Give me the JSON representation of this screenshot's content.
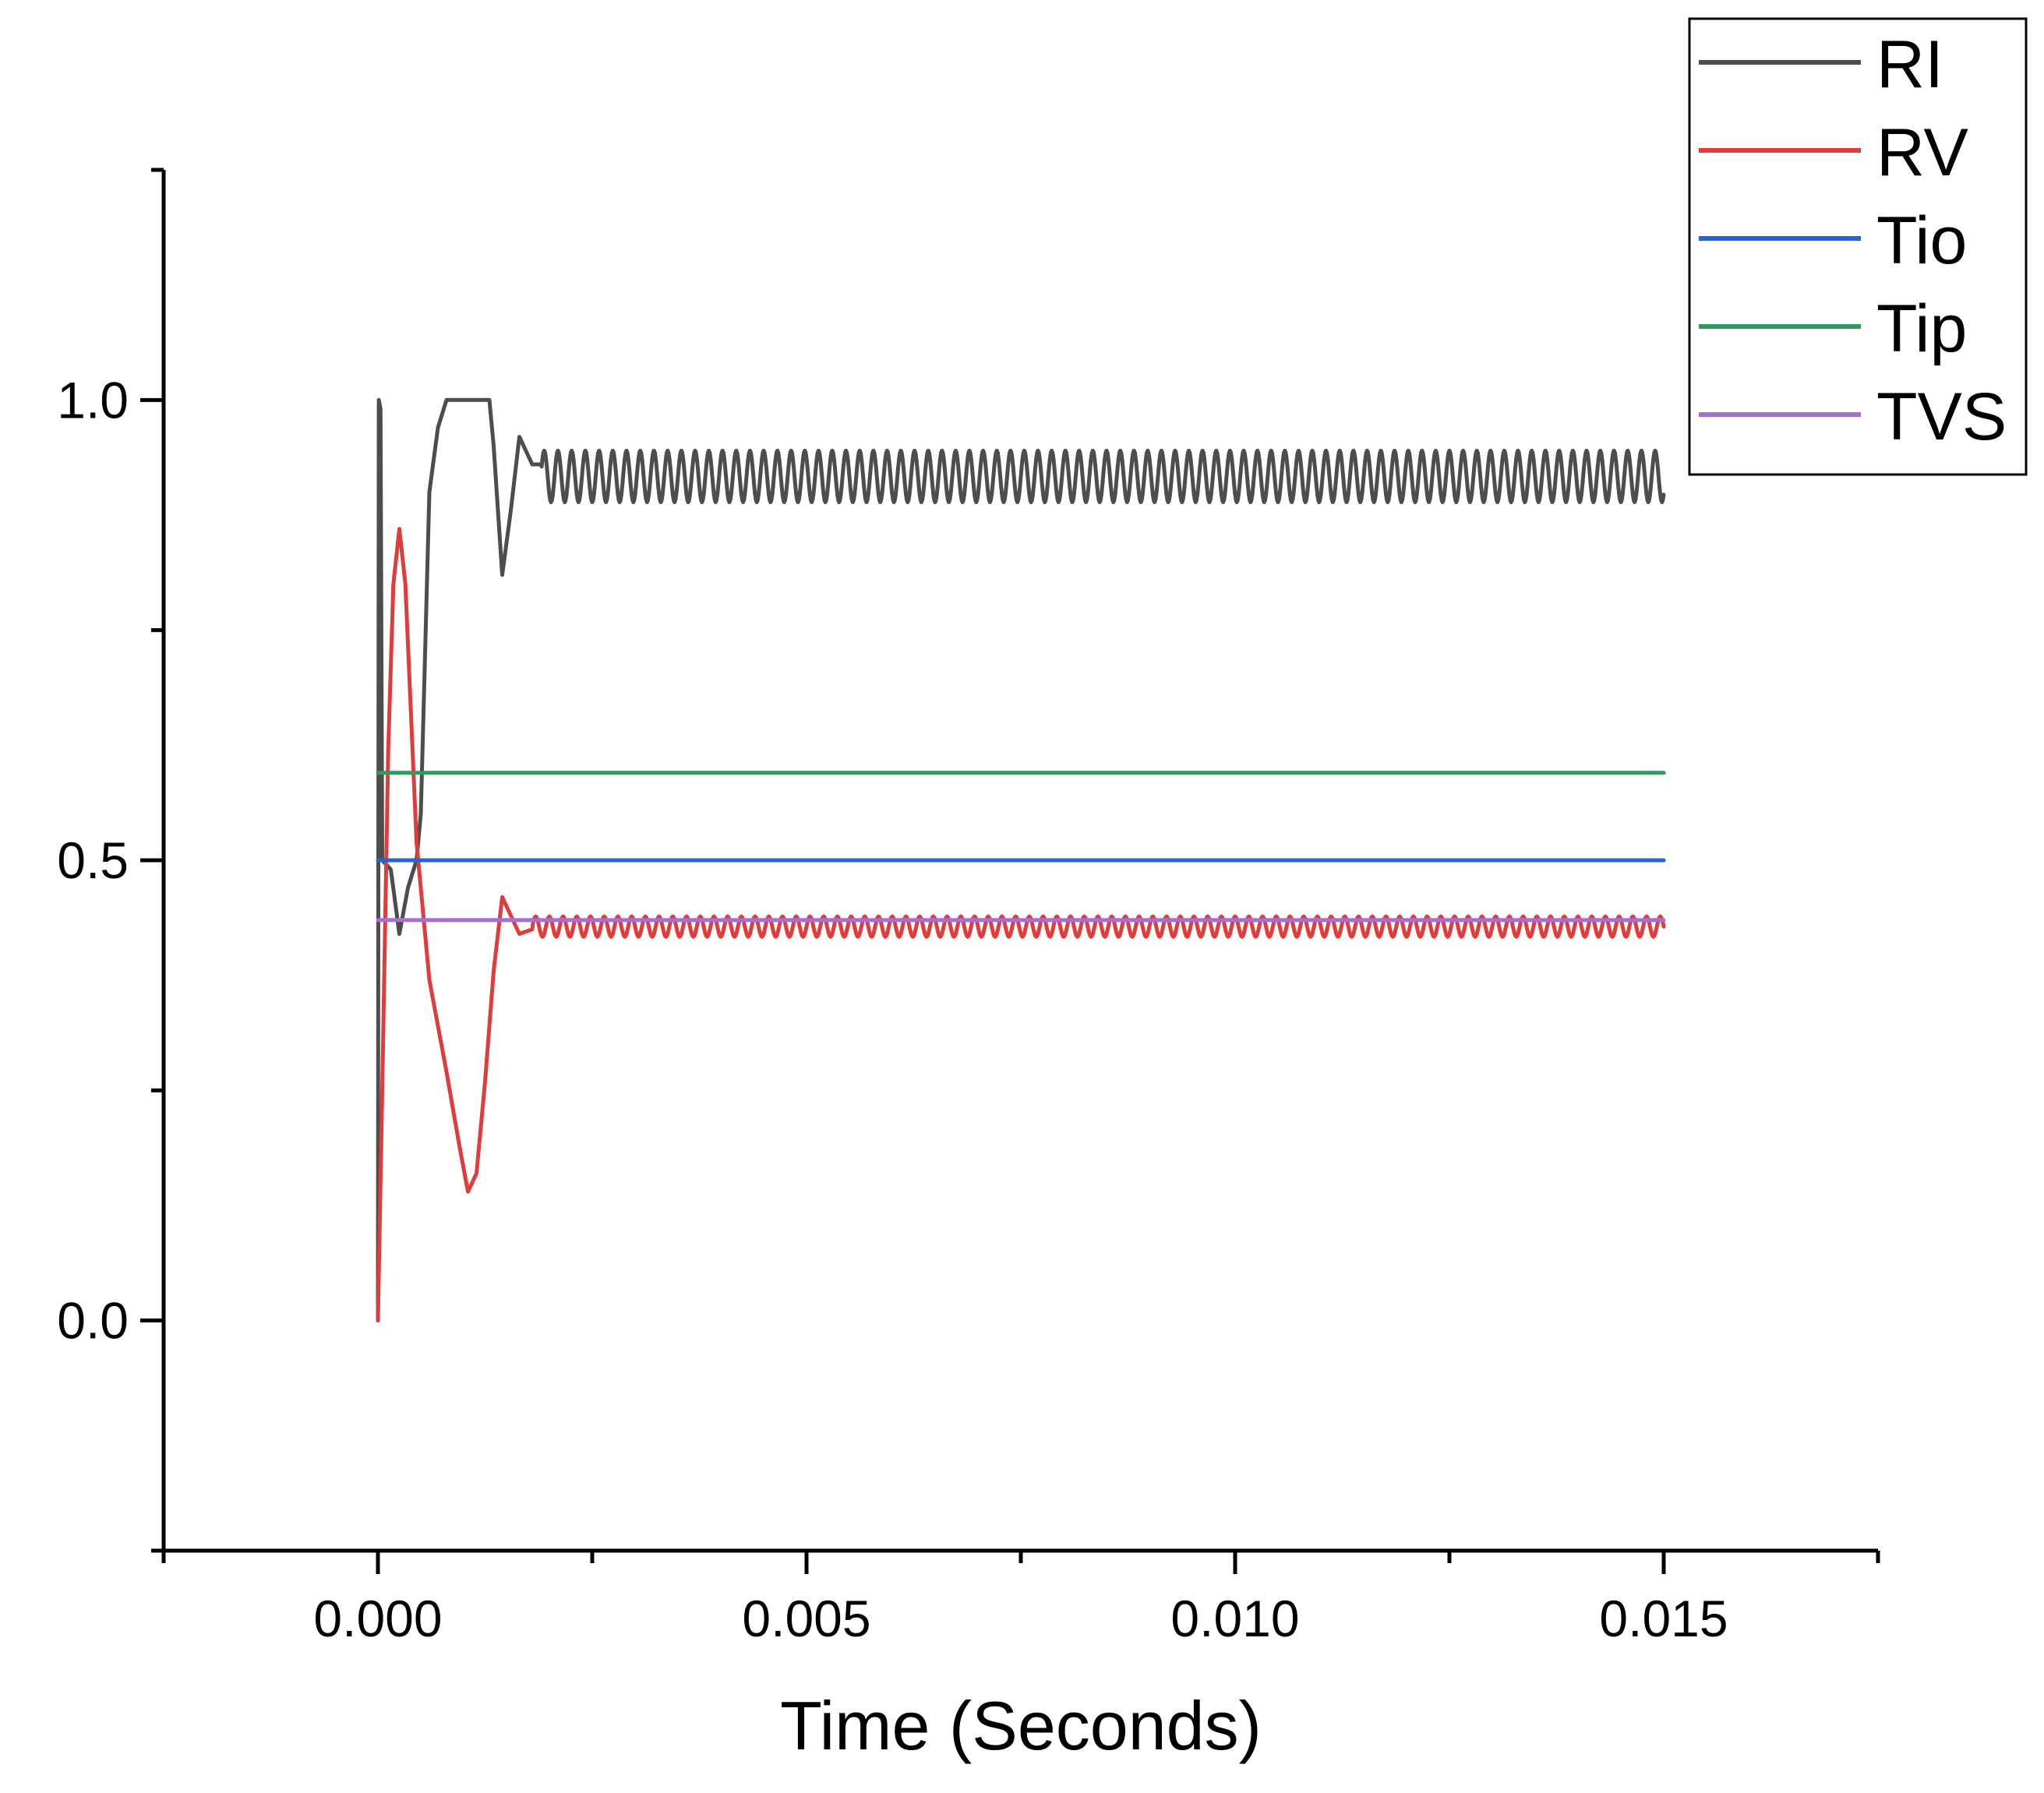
{
  "chart_data": {
    "type": "line",
    "title": "",
    "xlabel": "Time (Seconds)",
    "ylabel": "",
    "xlim": [
      -0.0025,
      0.0175
    ],
    "ylim": [
      -0.25,
      1.25
    ],
    "x_ticks": [
      0.0,
      0.005,
      0.01,
      0.015
    ],
    "x_tick_labels": [
      "0.000",
      "0.005",
      "0.010",
      "0.015"
    ],
    "x_minor_ticks": [
      -0.0025,
      0.0025,
      0.0075,
      0.0125,
      0.0175
    ],
    "y_ticks": [
      0.0,
      0.5,
      1.0
    ],
    "y_tick_labels": [
      "0.0",
      "0.5",
      "1.0"
    ],
    "y_minor_ticks": [
      -0.25,
      0.25,
      0.75,
      1.25
    ],
    "grid": false,
    "legend_position": "top-right",
    "series": [
      {
        "name": "RI",
        "color": "#4d4d4d",
        "points": [
          [
            0.0,
            0.0
          ],
          [
            1e-05,
            1.0
          ],
          [
            3e-05,
            0.99
          ],
          [
            5e-05,
            0.5
          ],
          [
            0.00015,
            0.49
          ],
          [
            0.00025,
            0.42
          ],
          [
            0.00035,
            0.47
          ],
          [
            0.00045,
            0.5
          ],
          [
            0.0005,
            0.55
          ],
          [
            0.0006,
            0.9
          ],
          [
            0.0007,
            0.97
          ],
          [
            0.0008,
            1.0
          ],
          [
            0.0013,
            1.0
          ],
          [
            0.00135,
            0.95
          ],
          [
            0.00145,
            0.81
          ],
          [
            0.00155,
            0.88
          ],
          [
            0.00165,
            0.96
          ],
          [
            0.0018,
            0.93
          ],
          [
            0.0019,
            0.93
          ]
        ],
        "oscillation": {
          "from": 0.0019,
          "to": 0.015,
          "center": 0.917,
          "amplitude": 0.028,
          "period": 0.00016
        }
      },
      {
        "name": "RV",
        "color": "#e03c3c",
        "points": [
          [
            0.0,
            0.0
          ],
          [
            5e-05,
            0.25
          ],
          [
            0.00012,
            0.62
          ],
          [
            0.00018,
            0.8
          ],
          [
            0.00025,
            0.86
          ],
          [
            0.00032,
            0.8
          ],
          [
            0.00045,
            0.52
          ],
          [
            0.0006,
            0.37
          ],
          [
            0.0008,
            0.27
          ],
          [
            0.00095,
            0.19
          ],
          [
            0.00105,
            0.14
          ],
          [
            0.00115,
            0.16
          ],
          [
            0.00125,
            0.26
          ],
          [
            0.00135,
            0.38
          ],
          [
            0.00145,
            0.46
          ],
          [
            0.00165,
            0.42
          ],
          [
            0.0018,
            0.425
          ]
        ],
        "oscillation": {
          "from": 0.0018,
          "to": 0.015,
          "center": 0.428,
          "amplitude": 0.011,
          "period": 0.00016
        }
      },
      {
        "name": "Tio",
        "color": "#2563d1",
        "points": [
          [
            0.0,
            0.5
          ],
          [
            0.015,
            0.5
          ]
        ]
      },
      {
        "name": "Tip",
        "color": "#2e9a5b",
        "points": [
          [
            0.0,
            0.595
          ],
          [
            0.015,
            0.595
          ]
        ]
      },
      {
        "name": "TVS",
        "color": "#a66fd4",
        "points": [
          [
            0.0,
            0.435
          ],
          [
            0.015,
            0.435
          ]
        ]
      }
    ]
  }
}
